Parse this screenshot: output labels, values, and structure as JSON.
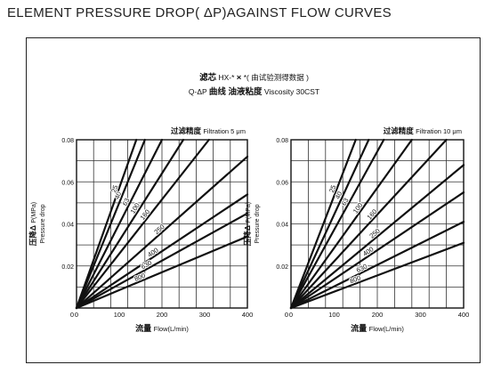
{
  "page_title": "ELEMENT PRESSURE DROP( ΔP)AGAINST FLOW CURVES",
  "header": {
    "line1_cn_a": "滤芯",
    "line1_model": "HX-*",
    "line1_x": "×",
    "line1_rest": "*( 由试验测得数据 )",
    "line2_prefix": "Q-ΔP",
    "line2_cn": "曲线 油液粘度",
    "line2_en": "Viscosity 30CST"
  },
  "chart_data": [
    {
      "type": "line",
      "title_cn": "过滤精度",
      "title_en": "Filtration 5 μm",
      "xlabel_cn": "流量",
      "xlabel_en": "Flow(L/min)",
      "ylabel_cn": "压降Δ",
      "ylabel_en_a": "P(MPa)",
      "ylabel_en_b": "Pressure drop",
      "xlim": [
        0,
        400
      ],
      "ylim": [
        0,
        0.08
      ],
      "xticks": [
        "0",
        "100",
        "200",
        "300",
        "400"
      ],
      "yticks": [
        "0.02",
        "0.04",
        "0.06",
        "0.08"
      ],
      "grid": true,
      "series": [
        {
          "name": "25",
          "x": [
            0,
            140
          ],
          "y": [
            0,
            0.08
          ]
        },
        {
          "name": "40",
          "x": [
            0,
            160
          ],
          "y": [
            0,
            0.08
          ]
        },
        {
          "name": "63",
          "x": [
            0,
            200
          ],
          "y": [
            0,
            0.08
          ]
        },
        {
          "name": "100",
          "x": [
            0,
            250
          ],
          "y": [
            0,
            0.08
          ]
        },
        {
          "name": "160",
          "x": [
            0,
            310
          ],
          "y": [
            0,
            0.08
          ]
        },
        {
          "name": "250",
          "x": [
            0,
            400
          ],
          "y": [
            0,
            0.072
          ]
        },
        {
          "name": "400",
          "x": [
            0,
            400
          ],
          "y": [
            0,
            0.054
          ]
        },
        {
          "name": "630",
          "x": [
            0,
            400
          ],
          "y": [
            0,
            0.045
          ]
        },
        {
          "name": "800",
          "x": [
            0,
            400
          ],
          "y": [
            0,
            0.034
          ]
        }
      ]
    },
    {
      "type": "line",
      "title_cn": "过滤精度",
      "title_en": "Filtration 10 μm",
      "xlabel_cn": "流量",
      "xlabel_en": "Flow(L/min)",
      "ylabel_cn": "压降Δ",
      "ylabel_en_a": "P(MPa)",
      "ylabel_en_b": "Pressure drop",
      "xlim": [
        0,
        400
      ],
      "ylim": [
        0,
        0.08
      ],
      "xticks": [
        "0",
        "100",
        "200",
        "300",
        "400"
      ],
      "yticks": [
        "0.02",
        "0.04",
        "0.06",
        "0.08"
      ],
      "grid": true,
      "series": [
        {
          "name": "25",
          "x": [
            0,
            150
          ],
          "y": [
            0,
            0.08
          ]
        },
        {
          "name": "40",
          "x": [
            0,
            180
          ],
          "y": [
            0,
            0.08
          ]
        },
        {
          "name": "63",
          "x": [
            0,
            215
          ],
          "y": [
            0,
            0.08
          ]
        },
        {
          "name": "100",
          "x": [
            0,
            280
          ],
          "y": [
            0,
            0.08
          ]
        },
        {
          "name": "160",
          "x": [
            0,
            360
          ],
          "y": [
            0,
            0.08
          ]
        },
        {
          "name": "250",
          "x": [
            0,
            400
          ],
          "y": [
            0,
            0.068
          ]
        },
        {
          "name": "400",
          "x": [
            0,
            400
          ],
          "y": [
            0,
            0.055
          ]
        },
        {
          "name": "630",
          "x": [
            0,
            400
          ],
          "y": [
            0,
            0.041
          ]
        },
        {
          "name": "800",
          "x": [
            0,
            400
          ],
          "y": [
            0,
            0.031
          ]
        }
      ]
    }
  ]
}
